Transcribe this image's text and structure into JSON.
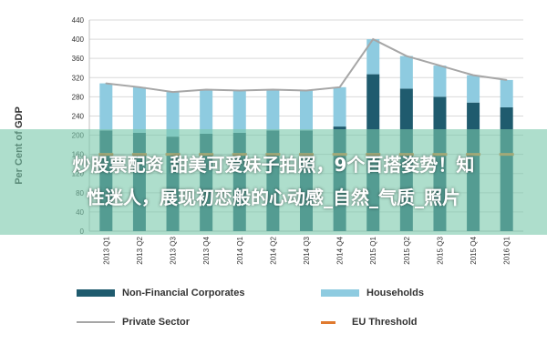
{
  "chart_data": {
    "type": "bar",
    "ylabel": "Per Cent of GDP",
    "ylim": [
      0,
      440
    ],
    "yticks": [
      0,
      40,
      80,
      120,
      160,
      200,
      240,
      280,
      320,
      360,
      400,
      440
    ],
    "grid": true,
    "categories": [
      "2013 Q1",
      "2013 Q2",
      "2013 Q3",
      "2013 Q4",
      "2014 Q1",
      "2014 Q2",
      "2014 Q3",
      "2014 Q4",
      "2015 Q1",
      "2015 Q2",
      "2015 Q3",
      "2015 Q4",
      "2016 Q1"
    ],
    "series": [
      {
        "name": "Non-Financial Corporates",
        "type": "stacked-bar",
        "color": "#1f5b6e",
        "values": [
          210,
          205,
          197,
          203,
          205,
          210,
          210,
          218,
          327,
          297,
          280,
          268,
          258
        ]
      },
      {
        "name": "Households",
        "type": "stacked-bar",
        "color": "#8ecbe0",
        "values": [
          98,
          95,
          93,
          92,
          88,
          85,
          83,
          82,
          73,
          68,
          65,
          57,
          57
        ]
      },
      {
        "name": "Private Sector",
        "type": "line",
        "color": "#a6a6a6",
        "values": [
          308,
          300,
          290,
          295,
          293,
          295,
          293,
          300,
          400,
          365,
          345,
          325,
          315
        ]
      },
      {
        "name": "EU Threshold",
        "type": "dash",
        "color": "#e07a2f",
        "values": [
          160,
          160,
          160,
          160,
          160,
          160,
          160,
          160,
          160,
          160,
          160,
          160,
          160
        ]
      }
    ],
    "legend_position": "bottom"
  },
  "overlay": {
    "line1": "炒股票配资 甜美可爱妹子拍照，9个百搭姿势！知",
    "line2": "性迷人，展现初恋般的心动感_自然_气质_照片"
  },
  "legend": {
    "item1": "Non-Financial Corporates",
    "item2": "Households",
    "item3": "Private Sector",
    "item4": "EU Threshold"
  }
}
